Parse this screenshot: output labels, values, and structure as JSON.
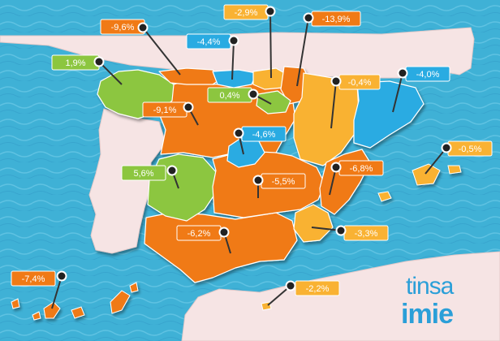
{
  "colors": {
    "orange": "#f07a16",
    "green": "#8cc63f",
    "blue": "#29abe2",
    "yellow": "#f9b233",
    "sea": "#3fb1d6",
    "land": "#f6e4e4"
  },
  "logo": {
    "line1": "tinsa",
    "line2": "imie"
  },
  "regions": [
    {
      "id": "galicia",
      "label": "1,9%",
      "value": 1.9,
      "color": "green"
    },
    {
      "id": "asturias",
      "label": "-9,6%",
      "value": -9.6,
      "color": "orange"
    },
    {
      "id": "cantabria",
      "label": "-4,4%",
      "value": -4.4,
      "color": "blue"
    },
    {
      "id": "pais-vasco",
      "label": "-2,9%",
      "value": -2.9,
      "color": "yellow"
    },
    {
      "id": "navarra",
      "label": "-13,9%",
      "value": -13.9,
      "color": "orange"
    },
    {
      "id": "la-rioja",
      "label": "0,4%",
      "value": 0.4,
      "color": "green"
    },
    {
      "id": "aragon",
      "label": "-0,4%",
      "value": -0.4,
      "color": "yellow"
    },
    {
      "id": "cataluna",
      "label": "-4,0%",
      "value": -4.0,
      "color": "blue"
    },
    {
      "id": "castilla-y-leon",
      "label": "-9,1%",
      "value": -9.1,
      "color": "orange"
    },
    {
      "id": "madrid",
      "label": "-4,6%",
      "value": -4.6,
      "color": "blue"
    },
    {
      "id": "baleares",
      "label": "-0,5%",
      "value": -0.5,
      "color": "yellow"
    },
    {
      "id": "extremadura",
      "label": "5,6%",
      "value": 5.6,
      "color": "green"
    },
    {
      "id": "castilla-la-mancha",
      "label": "-5,5%",
      "value": -5.5,
      "color": "orange"
    },
    {
      "id": "valencia",
      "label": "-6,8%",
      "value": -6.8,
      "color": "orange"
    },
    {
      "id": "murcia",
      "label": "-3,3%",
      "value": -3.3,
      "color": "yellow"
    },
    {
      "id": "andalucia",
      "label": "-6,2%",
      "value": -6.2,
      "color": "orange"
    },
    {
      "id": "canarias",
      "label": "-7,4%",
      "value": -7.4,
      "color": "orange"
    },
    {
      "id": "ceuta-melilla",
      "label": "-2,2%",
      "value": -2.2,
      "color": "yellow"
    }
  ]
}
